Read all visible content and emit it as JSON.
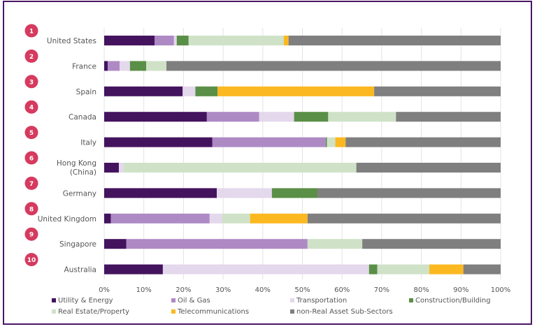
{
  "chart_data": {
    "type": "bar",
    "orientation": "horizontal",
    "stacked": true,
    "normalized": true,
    "title": "",
    "xlabel": "",
    "ylabel": "",
    "xlim": [
      0,
      100
    ],
    "x_ticks": [
      "0%",
      "10%",
      "20%",
      "30%",
      "40%",
      "50%",
      "60%",
      "70%",
      "80%",
      "90%",
      "100%"
    ],
    "grid": true,
    "legend_position": "bottom",
    "categories": [
      "United States",
      "France",
      "Spain",
      "Canada",
      "Italy",
      "Hong Kong (China)",
      "Germany",
      "United Kingdom",
      "Singapore",
      "Australia"
    ],
    "category_label_lines": [
      [
        "United States"
      ],
      [
        "France"
      ],
      [
        "Spain"
      ],
      [
        "Canada"
      ],
      [
        "Italy"
      ],
      [
        "Hong Kong",
        "(China)"
      ],
      [
        "Germany"
      ],
      [
        "United Kingdom"
      ],
      [
        "Singapore"
      ],
      [
        "Australia"
      ]
    ],
    "ranks": [
      "1",
      "2",
      "3",
      "4",
      "5",
      "6",
      "7",
      "8",
      "9",
      "10"
    ],
    "series": [
      {
        "name": "Utility & Energy",
        "color": "#44135e",
        "values": [
          12.7,
          0.9,
          19.8,
          25.9,
          27.3,
          3.7,
          28.4,
          1.7,
          5.6,
          14.8
        ]
      },
      {
        "name": "Oil & Gas",
        "color": "#ae8ac5",
        "values": [
          4.9,
          3.0,
          0,
          13.2,
          28.6,
          0,
          0,
          24.9,
          45.7,
          0
        ]
      },
      {
        "name": "Transportation",
        "color": "#e4d8ec",
        "values": [
          0.7,
          2.6,
          3.2,
          8.8,
          0,
          1.2,
          13.9,
          3.2,
          0,
          52.0
        ]
      },
      {
        "name": "Construction/Building",
        "color": "#5a8f47",
        "values": [
          3.0,
          4.1,
          5.6,
          8.6,
          0.3,
          0,
          11.5,
          0,
          0,
          2.1
        ]
      },
      {
        "name": "Real Estate/Property",
        "color": "#cfe2c8",
        "values": [
          24.0,
          5.1,
          0,
          17.1,
          2.1,
          58.7,
          0,
          7.0,
          13.8,
          13.1
        ]
      },
      {
        "name": "Telecommunications",
        "color": "#fbb821",
        "values": [
          1.2,
          0,
          39.5,
          0,
          2.6,
          0,
          0,
          14.5,
          0,
          8.6
        ]
      },
      {
        "name": "non-Real Asset Sub-Sectors",
        "color": "#7f7f7f",
        "values": [
          53.5,
          84.3,
          31.9,
          26.4,
          39.1,
          36.4,
          46.2,
          48.7,
          34.9,
          9.4
        ]
      }
    ],
    "legend_columns": 4
  },
  "colors": {
    "frame": "#4a1766",
    "badge": "#d63a5e",
    "grid": "#e3e3e3",
    "text": "#555555"
  }
}
